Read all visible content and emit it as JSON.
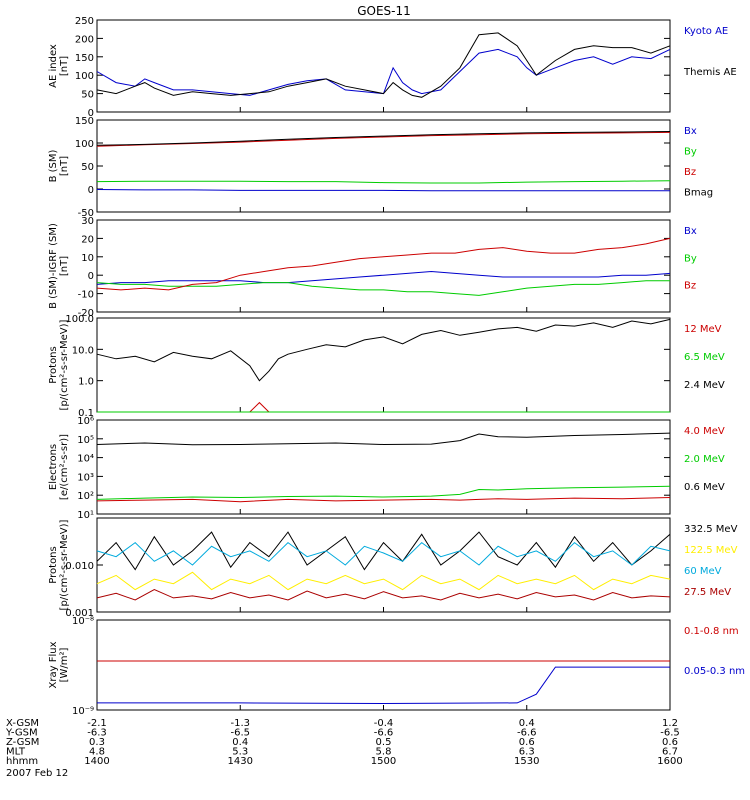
{
  "title": "GOES-11",
  "colors": {
    "blue": "#0000cc",
    "green": "#00cc00",
    "red": "#cc0000",
    "darkred": "#aa0000",
    "black": "#000000",
    "yellow": "#ffee00",
    "cyan": "#00aadd"
  },
  "footer": {
    "rows": [
      {
        "label": "X-GSM",
        "values": [
          "-2.1",
          "-1.3",
          "-0.4",
          "0.4",
          "1.2"
        ]
      },
      {
        "label": "Y-GSM",
        "values": [
          "-6.3",
          "-6.5",
          "-6.6",
          "-6.6",
          "-6.5"
        ]
      },
      {
        "label": "Z-GSM",
        "values": [
          "0.3",
          "0.4",
          "0.5",
          "0.6",
          "0.6"
        ]
      },
      {
        "label": "MLT",
        "values": [
          "4.8",
          "5.3",
          "5.8",
          "6.3",
          "6.7"
        ]
      },
      {
        "label": "hhmm",
        "values": [
          "1400",
          "1430",
          "1500",
          "1530",
          "1600"
        ]
      }
    ],
    "date": "2007 Feb 12"
  },
  "chart_data": [
    {
      "type": "line",
      "ylabel": [
        "AE index",
        "[nT]"
      ],
      "ylim": [
        0,
        250
      ],
      "yscale": "linear",
      "ticks": [
        0,
        50,
        100,
        150,
        200,
        250
      ],
      "tick_labels": [
        "0",
        "50",
        "100",
        "150",
        "200",
        "250"
      ],
      "x": [
        0,
        4,
        8,
        10,
        12,
        16,
        20,
        24,
        28,
        32,
        36,
        40,
        44,
        48,
        52,
        56,
        60,
        62,
        64,
        66,
        68,
        72,
        76,
        80,
        84,
        88,
        90,
        92,
        96,
        100,
        104,
        108,
        112,
        116,
        120
      ],
      "series": [
        {
          "name": "Kyoto AE",
          "color": "blue",
          "values": [
            110,
            80,
            70,
            90,
            80,
            60,
            60,
            55,
            50,
            45,
            60,
            75,
            85,
            90,
            60,
            55,
            50,
            120,
            80,
            60,
            50,
            60,
            110,
            160,
            170,
            150,
            120,
            100,
            120,
            140,
            150,
            130,
            150,
            145,
            170
          ]
        },
        {
          "name": "Themis AE",
          "color": "black",
          "values": [
            60,
            50,
            70,
            80,
            65,
            45,
            55,
            50,
            45,
            50,
            55,
            70,
            80,
            90,
            70,
            60,
            50,
            80,
            60,
            45,
            40,
            70,
            120,
            210,
            215,
            180,
            140,
            100,
            140,
            170,
            180,
            175,
            175,
            160,
            180
          ]
        }
      ]
    },
    {
      "type": "line",
      "ylabel": [
        "B (SM)",
        "[nT]"
      ],
      "ylim": [
        -50,
        150
      ],
      "yscale": "linear",
      "ticks": [
        -50,
        0,
        50,
        100,
        150
      ],
      "tick_labels": [
        "-50",
        "0",
        "50",
        "100",
        "150"
      ],
      "x": [
        0,
        10,
        20,
        30,
        40,
        50,
        60,
        70,
        80,
        90,
        100,
        110,
        120
      ],
      "series": [
        {
          "name": "Bx",
          "color": "blue",
          "values": [
            -1,
            -2,
            -2,
            -3,
            -3,
            -3,
            -3,
            -4,
            -4,
            -4,
            -4,
            -4,
            -4
          ]
        },
        {
          "name": "By",
          "color": "green",
          "values": [
            16,
            17,
            17,
            17,
            16,
            16,
            14,
            13,
            13,
            15,
            16,
            17,
            18
          ]
        },
        {
          "name": "Bz",
          "color": "red",
          "values": [
            93,
            96,
            99,
            102,
            106,
            110,
            113,
            116,
            118,
            120,
            121,
            122,
            123
          ]
        },
        {
          "name": "Bmag",
          "color": "black",
          "values": [
            95,
            97,
            100,
            104,
            108,
            112,
            115,
            118,
            120,
            122,
            123,
            124,
            125
          ]
        }
      ]
    },
    {
      "type": "line",
      "ylabel": [
        "B (SM)-IGRF (SM)",
        "[nT]"
      ],
      "ylim": [
        -20,
        30
      ],
      "yscale": "linear",
      "ticks": [
        -20,
        -10,
        0,
        10,
        20,
        30
      ],
      "tick_labels": [
        "-20",
        "-10",
        "0",
        "10",
        "20",
        "30"
      ],
      "x": [
        0,
        5,
        10,
        15,
        20,
        25,
        30,
        35,
        40,
        45,
        50,
        55,
        60,
        65,
        70,
        75,
        80,
        85,
        90,
        95,
        100,
        105,
        110,
        115,
        120
      ],
      "series": [
        {
          "name": "Bx",
          "color": "blue",
          "values": [
            -5,
            -4,
            -4,
            -3,
            -3,
            -3,
            -3,
            -4,
            -4,
            -3,
            -2,
            -1,
            0,
            1,
            2,
            1,
            0,
            -1,
            -1,
            -1,
            -1,
            -1,
            0,
            0,
            1
          ]
        },
        {
          "name": "By",
          "color": "green",
          "values": [
            -4,
            -5,
            -5,
            -6,
            -6,
            -6,
            -5,
            -4,
            -4,
            -6,
            -7,
            -8,
            -8,
            -9,
            -9,
            -10,
            -11,
            -9,
            -7,
            -6,
            -5,
            -5,
            -4,
            -3,
            -3
          ]
        },
        {
          "name": "Bz",
          "color": "red",
          "values": [
            -7,
            -8,
            -7,
            -8,
            -5,
            -4,
            0,
            2,
            4,
            5,
            7,
            9,
            10,
            11,
            12,
            12,
            14,
            15,
            13,
            12,
            12,
            14,
            15,
            17,
            20
          ]
        }
      ]
    },
    {
      "type": "line",
      "ylabel": [
        "Protons",
        "[p/(cm²-s-sr-MeV)]"
      ],
      "ylim": [
        0.1,
        100
      ],
      "yscale": "log",
      "ticks": [
        0.1,
        1,
        10,
        100
      ],
      "tick_labels": [
        "0.1",
        "1.0",
        "10.0",
        "100.0"
      ],
      "x": [
        0,
        4,
        8,
        12,
        16,
        20,
        24,
        28,
        32,
        34,
        36,
        38,
        40,
        44,
        48,
        52,
        56,
        60,
        64,
        68,
        72,
        76,
        80,
        84,
        88,
        92,
        96,
        100,
        104,
        108,
        112,
        116,
        120
      ],
      "series": [
        {
          "name": "12 MeV",
          "color": "red",
          "values": [
            0.1,
            0.1,
            0.1,
            0.1,
            0.1,
            0.1,
            0.1,
            0.1,
            0.1,
            0.2,
            0.1,
            0.1,
            0.1,
            0.1,
            0.1,
            0.1,
            0.1,
            0.1,
            0.1,
            0.1,
            0.1,
            0.1,
            0.1,
            0.1,
            0.1,
            0.1,
            0.1,
            0.1,
            0.1,
            0.1,
            0.1,
            0.1,
            0.1
          ]
        },
        {
          "name": "6.5 MeV",
          "color": "green",
          "values": [
            0.1,
            0.1,
            0.1,
            0.1,
            0.1,
            0.1,
            0.1,
            0.1,
            0.1,
            0.1,
            0.1,
            0.1,
            0.1,
            0.1,
            0.1,
            0.1,
            0.1,
            0.1,
            0.1,
            0.1,
            0.1,
            0.1,
            0.1,
            0.1,
            0.1,
            0.1,
            0.1,
            0.1,
            0.1,
            0.1,
            0.1,
            0.1,
            0.1
          ]
        },
        {
          "name": "2.4 MeV",
          "color": "black",
          "values": [
            7,
            5,
            6,
            4,
            8,
            6,
            5,
            9,
            3,
            1,
            2,
            5,
            7,
            10,
            14,
            12,
            20,
            25,
            15,
            30,
            40,
            28,
            35,
            45,
            50,
            38,
            60,
            55,
            70,
            50,
            80,
            65,
            90
          ]
        }
      ]
    },
    {
      "type": "line",
      "ylabel": [
        "Electrons",
        "[e/(cm²-s-sr)]"
      ],
      "ylim": [
        10,
        1000000
      ],
      "yscale": "log",
      "ticks": [
        10,
        100,
        1000,
        10000,
        100000,
        1000000
      ],
      "tick_labels": [
        "10¹",
        "10²",
        "10³",
        "10⁴",
        "10⁵",
        "10⁶"
      ],
      "x": [
        0,
        10,
        20,
        30,
        40,
        50,
        60,
        70,
        76,
        80,
        84,
        90,
        100,
        110,
        120
      ],
      "series": [
        {
          "name": "4.0 MeV",
          "color": "red",
          "values": [
            50,
            55,
            60,
            45,
            60,
            50,
            55,
            60,
            55,
            60,
            65,
            60,
            70,
            65,
            75
          ]
        },
        {
          "name": "2.0 MeV",
          "color": "green",
          "values": [
            60,
            70,
            80,
            75,
            85,
            90,
            80,
            90,
            110,
            200,
            190,
            220,
            250,
            270,
            300
          ]
        },
        {
          "name": "0.6 MeV",
          "color": "black",
          "values": [
            50000,
            60000,
            48000,
            50000,
            55000,
            60000,
            50000,
            52000,
            80000,
            180000,
            130000,
            120000,
            150000,
            170000,
            200000
          ]
        }
      ]
    },
    {
      "type": "line",
      "ylabel": [
        "Protons",
        "[p/(cm²-s-sr-MeV)]"
      ],
      "ylim": [
        0.001,
        0.1
      ],
      "yscale": "log",
      "ticks": [
        0.001,
        0.01
      ],
      "tick_labels": [
        "0.001",
        "0.010"
      ],
      "x": [
        0,
        4,
        8,
        12,
        16,
        20,
        24,
        28,
        32,
        36,
        40,
        44,
        48,
        52,
        56,
        60,
        64,
        68,
        72,
        76,
        80,
        84,
        88,
        92,
        96,
        100,
        104,
        108,
        112,
        116,
        120
      ],
      "series": [
        {
          "name": "332.5 MeV",
          "color": "black",
          "values": [
            0.012,
            0.03,
            0.008,
            0.04,
            0.01,
            0.02,
            0.05,
            0.009,
            0.03,
            0.015,
            0.05,
            0.01,
            0.02,
            0.04,
            0.008,
            0.03,
            0.012,
            0.045,
            0.01,
            0.02,
            0.05,
            0.015,
            0.01,
            0.03,
            0.009,
            0.04,
            0.012,
            0.03,
            0.01,
            0.02,
            0.045
          ]
        },
        {
          "name": "122.5 MeV",
          "color": "yellow",
          "values": [
            0.004,
            0.006,
            0.003,
            0.005,
            0.004,
            0.007,
            0.003,
            0.005,
            0.004,
            0.006,
            0.003,
            0.005,
            0.004,
            0.006,
            0.004,
            0.005,
            0.003,
            0.006,
            0.004,
            0.005,
            0.003,
            0.006,
            0.004,
            0.005,
            0.004,
            0.006,
            0.003,
            0.005,
            0.004,
            0.006,
            0.005
          ]
        },
        {
          "name": "60 MeV",
          "color": "cyan",
          "values": [
            0.02,
            0.015,
            0.03,
            0.012,
            0.02,
            0.01,
            0.025,
            0.015,
            0.02,
            0.012,
            0.03,
            0.015,
            0.02,
            0.01,
            0.025,
            0.018,
            0.012,
            0.03,
            0.015,
            0.02,
            0.01,
            0.025,
            0.015,
            0.02,
            0.012,
            0.03,
            0.015,
            0.02,
            0.01,
            0.025,
            0.02
          ]
        },
        {
          "name": "27.5 MeV",
          "color": "darkred",
          "values": [
            0.002,
            0.0025,
            0.0018,
            0.003,
            0.002,
            0.0022,
            0.0019,
            0.0026,
            0.002,
            0.0023,
            0.0018,
            0.0028,
            0.002,
            0.0024,
            0.0019,
            0.0027,
            0.002,
            0.0022,
            0.0018,
            0.0025,
            0.002,
            0.0024,
            0.0019,
            0.0026,
            0.0021,
            0.0023,
            0.0018,
            0.0026,
            0.002,
            0.0022,
            0.0021
          ]
        }
      ]
    },
    {
      "type": "line",
      "ylabel": [
        "Xray Flux",
        "[W/m²]"
      ],
      "ylim": [
        1e-09,
        1e-08
      ],
      "yscale": "log",
      "ticks": [
        1e-09,
        1e-08
      ],
      "tick_labels": [
        "10⁻⁹",
        "10⁻⁸"
      ],
      "x": [
        0,
        30,
        60,
        88,
        92,
        96,
        120
      ],
      "series": [
        {
          "name": "0.1-0.8 nm",
          "color": "red",
          "values": [
            3.5e-09,
            3.5e-09,
            3.5e-09,
            3.5e-09,
            3.5e-09,
            3.5e-09,
            3.5e-09
          ]
        },
        {
          "name": "0.05-0.3 nm",
          "color": "blue",
          "values": [
            1.2e-09,
            1.2e-09,
            1.18e-09,
            1.2e-09,
            1.5e-09,
            3e-09,
            3e-09
          ]
        }
      ]
    }
  ]
}
